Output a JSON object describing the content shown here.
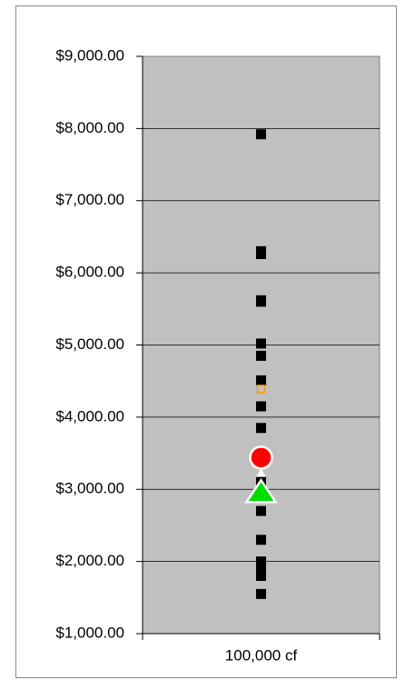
{
  "chart_data": {
    "type": "strip",
    "categories": [
      "100,000 cf"
    ],
    "ylim": [
      1000,
      9000
    ],
    "yticks": [
      {
        "value": 1000,
        "label": "$1,000.00"
      },
      {
        "value": 2000,
        "label": "$2,000.00"
      },
      {
        "value": 3000,
        "label": "$3,000.00"
      },
      {
        "value": 4000,
        "label": "$4,000.00"
      },
      {
        "value": 5000,
        "label": "$5,000.00"
      },
      {
        "value": 6000,
        "label": "$6,000.00"
      },
      {
        "value": 7000,
        "label": "$7,000.00"
      },
      {
        "value": 8000,
        "label": "$8,000.00"
      },
      {
        "value": 9000,
        "label": "$9,000.00"
      }
    ],
    "grid": true,
    "series": [
      {
        "color": "#000000",
        "marker": "square",
        "values": [
          7920,
          6300,
          6260,
          5620,
          5600,
          5020,
          4850,
          4510,
          4150,
          3850,
          3100,
          2700,
          2300,
          2000,
          1950,
          1880,
          1800,
          1550
        ]
      },
      {
        "color": "#ff9900",
        "marker": "open-square",
        "values": [
          4390
        ]
      },
      {
        "color": "#ff0000",
        "marker": "circle",
        "values": [
          3440
        ]
      },
      {
        "color": "#ffffff",
        "marker": "small-triangle",
        "values": [
          3230
        ]
      },
      {
        "color": "#00dd00",
        "marker": "triangle",
        "values": [
          2950
        ]
      }
    ]
  }
}
